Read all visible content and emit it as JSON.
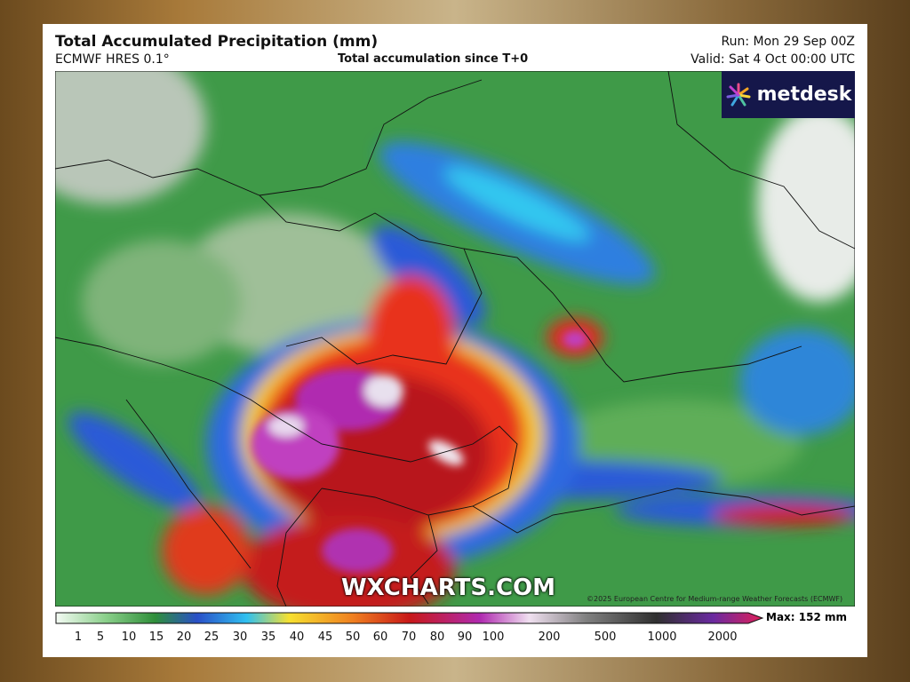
{
  "header": {
    "title": "Total Accumulated Precipitation (mm)",
    "model": "ECMWF HRES 0.1°",
    "accumulation": "Total accumulation since T+0",
    "run": "Run: Mon 29 Sep 00Z",
    "valid": "Valid: Sat 4 Oct 00:00 UTC"
  },
  "logo": "metdesk",
  "watermark": "WXCHARTS.COM",
  "copyright": "©2025 European Centre for Medium-range Weather Forecasts (ECMWF)",
  "colorbar": {
    "labels": [
      1,
      5,
      10,
      15,
      20,
      25,
      30,
      35,
      40,
      45,
      50,
      60,
      70,
      80,
      90,
      100,
      200,
      500,
      1000,
      2000
    ],
    "max": "Max: 152 mm"
  }
}
